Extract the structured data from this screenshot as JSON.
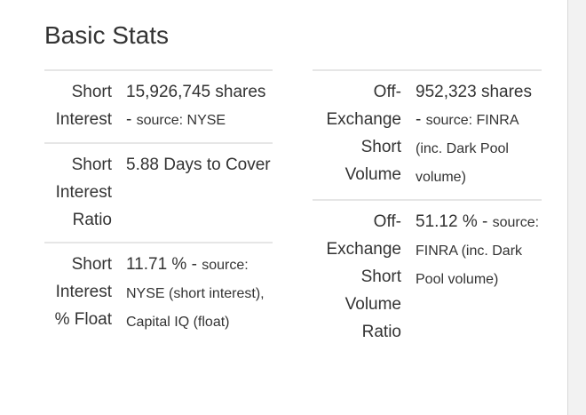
{
  "title": "Basic Stats",
  "left_table": {
    "rows": [
      {
        "label": "Short Interest",
        "value": "15,926,745 shares -",
        "source": "source: NYSE"
      },
      {
        "label": "Short Interest Ratio",
        "value": "5.88 Days to Cover"
      },
      {
        "label": "Short Interest % Float",
        "value": "11.71 % -",
        "source": "source: NYSE (short interest), Capital IQ (float)"
      }
    ]
  },
  "right_table": {
    "rows": [
      {
        "label": "Off-Exchange Short Volume",
        "value": "952,323 shares -",
        "source": "source: FINRA (inc. Dark Pool volume)"
      },
      {
        "label": "Off-Exchange Short Volume Ratio",
        "value": "51.12 % -",
        "source": "source: FINRA (inc. Dark Pool volume)"
      }
    ]
  }
}
